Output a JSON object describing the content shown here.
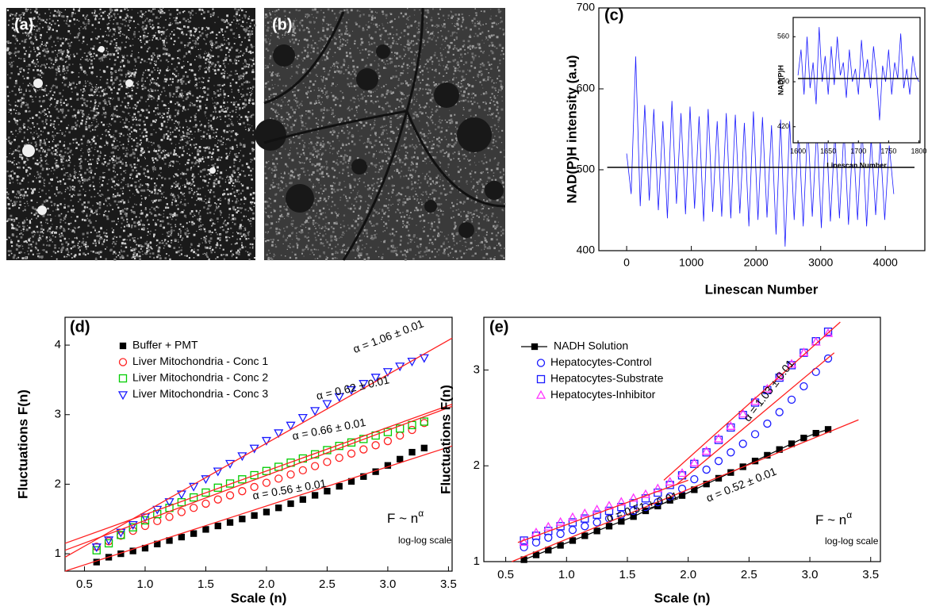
{
  "images": [
    {
      "label": "(a)"
    },
    {
      "label": "(b)"
    }
  ],
  "chart_data": [
    {
      "type": "line",
      "panel_label": "(c)",
      "ylabel": "NAD(P)H intensity (a.u)",
      "xlabel": "Linescan Number",
      "xlim": [
        -430,
        4610
      ],
      "xticks": [
        0,
        1000,
        2000,
        3000,
        4000
      ],
      "ylim": [
        400,
        700
      ],
      "yticks": [
        400,
        500,
        600,
        700
      ],
      "series": [
        {
          "color": "#1a1aff",
          "x": [
            0,
            70,
            140,
            210,
            280,
            350,
            420,
            490,
            560,
            630,
            700,
            770,
            840,
            910,
            980,
            1050,
            1120,
            1190,
            1260,
            1330,
            1400,
            1470,
            1540,
            1610,
            1680,
            1750,
            1820,
            1890,
            1960,
            2030,
            2100,
            2170,
            2240,
            2310,
            2380,
            2450,
            2520,
            2590,
            2660,
            2730,
            2800,
            2870,
            2940,
            3010,
            3080,
            3150,
            3220,
            3290,
            3360,
            3430,
            3500,
            3570,
            3640,
            3710,
            3780,
            3850,
            3920,
            3990,
            4060,
            4130
          ],
          "values": [
            520,
            470,
            640,
            455,
            580,
            462,
            575,
            450,
            560,
            440,
            585,
            458,
            570,
            445,
            578,
            452,
            566,
            436,
            575,
            448,
            560,
            442,
            570,
            440,
            568,
            446,
            558,
            430,
            572,
            438,
            565,
            441,
            555,
            420,
            562,
            405,
            560,
            438,
            548,
            430,
            556,
            442,
            552,
            428,
            560,
            436,
            546,
            440,
            550,
            432,
            545,
            438,
            552,
            430,
            540,
            444,
            535,
            438,
            530,
            470
          ]
        },
        {
          "color": "#000000",
          "x": [
            -300,
            4450
          ],
          "values": [
            503,
            503
          ]
        }
      ]
    },
    {
      "type": "line",
      "ylabel": "NAD(P)H",
      "xlabel": "Linescan Number",
      "xlim": [
        1592,
        1802
      ],
      "xticks": [
        1600,
        1650,
        1700,
        1750,
        1800
      ],
      "ylim": [
        395,
        590
      ],
      "yticks": [
        420,
        490,
        560
      ],
      "series": [
        {
          "color": "#1a1aff",
          "x": [
            1600,
            1605,
            1610,
            1615,
            1620,
            1625,
            1630,
            1635,
            1640,
            1645,
            1650,
            1655,
            1660,
            1665,
            1670,
            1675,
            1680,
            1685,
            1690,
            1695,
            1700,
            1705,
            1710,
            1715,
            1720,
            1725,
            1730,
            1735,
            1740,
            1745,
            1750,
            1755,
            1760,
            1765,
            1770,
            1775,
            1780,
            1785,
            1790,
            1795,
            1800
          ],
          "values": [
            500,
            540,
            470,
            560,
            480,
            520,
            455,
            575,
            490,
            530,
            470,
            545,
            485,
            560,
            500,
            520,
            465,
            540,
            490,
            510,
            470,
            555,
            495,
            525,
            480,
            545,
            500,
            430,
            515,
            490,
            540,
            470,
            520,
            495,
            565,
            480,
            510,
            470,
            530,
            500,
            490
          ]
        },
        {
          "color": "#000000",
          "x": [
            1600,
            1800
          ],
          "values": [
            495,
            495
          ]
        }
      ]
    },
    {
      "type": "scatter",
      "panel_label": "(d)",
      "ylabel": "Fluctuations F(n)",
      "xlabel": "Scale (n)",
      "xlim": [
        0.34,
        3.53
      ],
      "xticks": [
        0.5,
        {
          "value": 1,
          "label": "1.0"
        },
        1.5,
        {
          "value": 2,
          "label": "2.0"
        },
        2.5,
        {
          "value": 3,
          "label": "3.0"
        },
        3.5
      ],
      "ylim": [
        0.75,
        4.4
      ],
      "yticks": [
        1,
        2,
        3,
        4
      ],
      "legend": "upper left",
      "annotations": [
        "α = 1.06 ± 0.01",
        "α = 0.62 ± 0.01",
        "α = 0.66 ± 0.01",
        "α = 0.56 ± 0.01"
      ],
      "formula": {
        "base": "F ~ n",
        "exponent": "α"
      },
      "scale_note": "log-log scale",
      "fit_color": "#ff2020",
      "fits": [
        {
          "x": [
            0.34,
            3.53
          ],
          "values": [
            0.75,
            2.55
          ]
        },
        {
          "x": [
            0.34,
            3.53
          ],
          "values": [
            1.05,
            3.12
          ]
        },
        {
          "x": [
            0.34,
            3.53
          ],
          "values": [
            1.15,
            3.15
          ]
        },
        {
          "x": [
            0.34,
            3.53
          ],
          "values": [
            0.95,
            4.1
          ]
        }
      ],
      "series": [
        {
          "name": "Buffer + PMT",
          "color": "#000000",
          "marker": "square",
          "filled": true,
          "x": [
            0.6,
            0.7,
            0.8,
            0.9,
            1.0,
            1.1,
            1.2,
            1.3,
            1.4,
            1.5,
            1.6,
            1.7,
            1.8,
            1.9,
            2.0,
            2.1,
            2.2,
            2.3,
            2.4,
            2.5,
            2.6,
            2.7,
            2.8,
            2.9,
            3.0,
            3.1,
            3.2,
            3.3
          ],
          "values": [
            0.88,
            0.95,
            1.0,
            1.04,
            1.08,
            1.14,
            1.19,
            1.24,
            1.29,
            1.35,
            1.4,
            1.45,
            1.5,
            1.55,
            1.6,
            1.66,
            1.72,
            1.78,
            1.84,
            1.9,
            1.97,
            2.04,
            2.11,
            2.18,
            2.27,
            2.36,
            2.46,
            2.52
          ]
        },
        {
          "name": "Liver Mitochondria - Conc 1",
          "color": "#ff2020",
          "marker": "circle",
          "filled": false,
          "x": [
            0.6,
            0.7,
            0.8,
            0.9,
            1.0,
            1.1,
            1.2,
            1.3,
            1.4,
            1.5,
            1.6,
            1.7,
            1.8,
            1.9,
            2.0,
            2.1,
            2.2,
            2.3,
            2.4,
            2.5,
            2.6,
            2.7,
            2.8,
            2.9,
            3.0,
            3.1,
            3.2,
            3.3
          ],
          "values": [
            1.1,
            1.18,
            1.26,
            1.33,
            1.4,
            1.47,
            1.53,
            1.6,
            1.66,
            1.72,
            1.78,
            1.84,
            1.9,
            1.96,
            2.02,
            2.08,
            2.14,
            2.2,
            2.26,
            2.32,
            2.38,
            2.44,
            2.5,
            2.56,
            2.62,
            2.7,
            2.78,
            2.88
          ]
        },
        {
          "name": "Liver Mitochondria - Conc 2",
          "color": "#00cc00",
          "marker": "square",
          "filled": false,
          "x": [
            0.6,
            0.7,
            0.8,
            0.9,
            1.0,
            1.1,
            1.2,
            1.3,
            1.4,
            1.5,
            1.6,
            1.7,
            1.8,
            1.9,
            2.0,
            2.1,
            2.2,
            2.3,
            2.4,
            2.5,
            2.6,
            2.7,
            2.8,
            2.9,
            3.0,
            3.1,
            3.2,
            3.3
          ],
          "values": [
            1.05,
            1.15,
            1.27,
            1.38,
            1.48,
            1.57,
            1.66,
            1.74,
            1.81,
            1.88,
            1.95,
            2.01,
            2.07,
            2.13,
            2.19,
            2.25,
            2.31,
            2.37,
            2.43,
            2.49,
            2.55,
            2.6,
            2.65,
            2.7,
            2.75,
            2.8,
            2.85,
            2.9
          ]
        },
        {
          "name": "Liver Mitochondria - Conc 3",
          "color": "#1a1aff",
          "marker": "triangle-down",
          "filled": false,
          "x": [
            0.6,
            0.7,
            0.8,
            0.9,
            1.0,
            1.1,
            1.2,
            1.3,
            1.4,
            1.5,
            1.6,
            1.7,
            1.8,
            1.9,
            2.0,
            2.1,
            2.2,
            2.3,
            2.4,
            2.5,
            2.6,
            2.7,
            2.8,
            2.9,
            3.0,
            3.1,
            3.2,
            3.3
          ],
          "values": [
            1.1,
            1.2,
            1.31,
            1.42,
            1.53,
            1.64,
            1.75,
            1.86,
            1.97,
            2.08,
            2.19,
            2.3,
            2.41,
            2.52,
            2.63,
            2.74,
            2.85,
            2.96,
            3.06,
            3.16,
            3.26,
            3.36,
            3.45,
            3.54,
            3.62,
            3.7,
            3.77,
            3.82
          ]
        }
      ]
    },
    {
      "type": "scatter",
      "panel_label": "(e)",
      "ylabel": "Fluctuations F(n)",
      "xlabel": "Scale (n)",
      "xlim": [
        0.32,
        3.58
      ],
      "xticks": [
        0.5,
        {
          "value": 1,
          "label": "1.0"
        },
        1.5,
        {
          "value": 2,
          "label": "2.0"
        },
        2.5,
        {
          "value": 3,
          "label": "3.0"
        },
        3.5
      ],
      "ylim": [
        1,
        3.55
      ],
      "yticks": [
        1,
        2,
        3
      ],
      "legend": "upper left",
      "annotations": [
        "α = 1.03 ± 0.01",
        "α = 0.51 ± 0.01",
        "α = 0.52 ± 0.01"
      ],
      "formula": {
        "base": "F ~ n",
        "exponent": "α"
      },
      "scale_note": "log-log scale",
      "fit_color": "#ff2020",
      "fits": [
        {
          "x": [
            0.55,
            3.4
          ],
          "values": [
            1.0,
            2.48
          ]
        },
        {
          "x": [
            1.8,
            3.25
          ],
          "values": [
            1.85,
            3.5
          ]
        },
        {
          "x": [
            1.9,
            3.2
          ],
          "values": [
            1.8,
            3.18
          ]
        },
        {
          "x": [
            0.6,
            2.0
          ],
          "values": [
            1.2,
            1.85
          ]
        }
      ],
      "series": [
        {
          "name": "NADH Solution",
          "color": "#000000",
          "marker": "square",
          "filled": true,
          "line": true,
          "x": [
            0.65,
            0.75,
            0.85,
            0.95,
            1.05,
            1.15,
            1.25,
            1.35,
            1.45,
            1.55,
            1.65,
            1.75,
            1.85,
            1.95,
            2.05,
            2.15,
            2.25,
            2.35,
            2.45,
            2.55,
            2.65,
            2.75,
            2.85,
            2.95,
            3.05,
            3.15
          ],
          "values": [
            1.02,
            1.07,
            1.12,
            1.17,
            1.22,
            1.27,
            1.32,
            1.37,
            1.42,
            1.47,
            1.53,
            1.58,
            1.64,
            1.69,
            1.75,
            1.81,
            1.87,
            1.93,
            1.99,
            2.05,
            2.11,
            2.17,
            2.23,
            2.29,
            2.34,
            2.38
          ]
        },
        {
          "name": "Hepatocytes-Control",
          "color": "#1a1aff",
          "marker": "circle",
          "filled": false,
          "x": [
            0.65,
            0.75,
            0.85,
            0.95,
            1.05,
            1.15,
            1.25,
            1.35,
            1.45,
            1.55,
            1.65,
            1.75,
            1.85,
            1.95,
            2.05,
            2.15,
            2.25,
            2.35,
            2.45,
            2.55,
            2.65,
            2.75,
            2.85,
            2.95,
            3.05,
            3.15
          ],
          "values": [
            1.15,
            1.2,
            1.25,
            1.29,
            1.33,
            1.37,
            1.41,
            1.45,
            1.49,
            1.53,
            1.57,
            1.62,
            1.68,
            1.76,
            1.86,
            1.96,
            2.05,
            2.14,
            2.23,
            2.33,
            2.44,
            2.56,
            2.69,
            2.83,
            2.98,
            3.12
          ]
        },
        {
          "name": "Hepatocytes-Substrate",
          "color": "#1a1aff",
          "marker": "square",
          "filled": false,
          "x": [
            0.65,
            0.75,
            0.85,
            0.95,
            1.05,
            1.15,
            1.25,
            1.35,
            1.45,
            1.55,
            1.65,
            1.75,
            1.85,
            1.95,
            2.05,
            2.15,
            2.25,
            2.35,
            2.45,
            2.55,
            2.65,
            2.75,
            2.85,
            2.95,
            3.05,
            3.15
          ],
          "values": [
            1.22,
            1.27,
            1.32,
            1.37,
            1.41,
            1.45,
            1.49,
            1.53,
            1.57,
            1.61,
            1.66,
            1.72,
            1.8,
            1.9,
            2.02,
            2.14,
            2.27,
            2.4,
            2.53,
            2.66,
            2.79,
            2.92,
            3.05,
            3.18,
            3.3,
            3.4
          ]
        },
        {
          "name": "Hepatocytes-Inhibitor",
          "color": "#ff33ff",
          "marker": "triangle-up",
          "filled": false,
          "x": [
            0.65,
            0.75,
            0.85,
            0.95,
            1.05,
            1.15,
            1.25,
            1.35,
            1.45,
            1.55,
            1.65,
            1.75,
            1.85,
            1.95,
            2.05,
            2.15,
            2.25,
            2.35,
            2.45,
            2.55,
            2.65,
            2.75,
            2.85,
            2.95,
            3.05,
            3.15
          ],
          "values": [
            1.2,
            1.3,
            1.36,
            1.41,
            1.46,
            1.5,
            1.54,
            1.58,
            1.62,
            1.66,
            1.7,
            1.76,
            1.83,
            1.92,
            2.03,
            2.15,
            2.28,
            2.41,
            2.54,
            2.67,
            2.8,
            2.93,
            3.06,
            3.18,
            3.29,
            3.38
          ]
        }
      ]
    }
  ]
}
